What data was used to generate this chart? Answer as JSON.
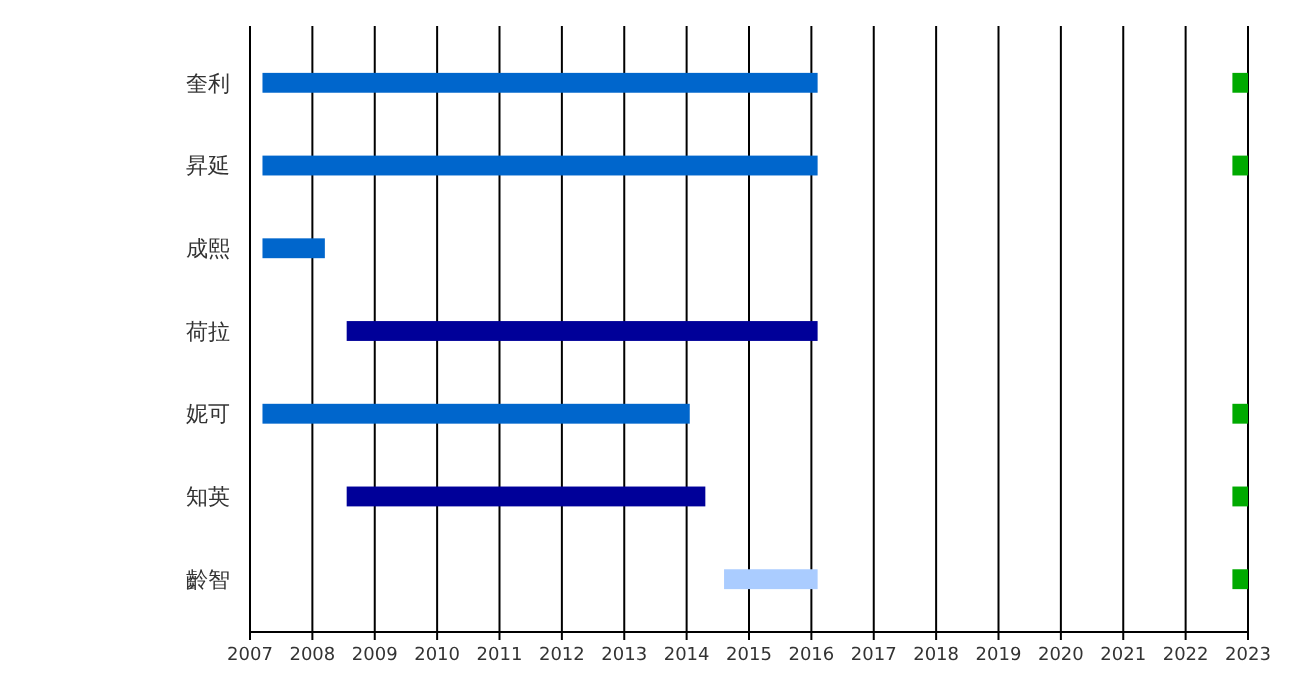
{
  "chart_data": {
    "type": "bar",
    "orientation": "horizontal",
    "categories": [
      "奎利",
      "昇延",
      "成熙",
      "荷拉",
      "妮可",
      "知英",
      "齡智"
    ],
    "series": [
      {
        "color": "#0066cc",
        "base": [
          2007.2,
          2007.2,
          2007.2,
          null,
          2007.2,
          null,
          null
        ],
        "values": [
          8.9,
          8.9,
          1.0,
          null,
          6.85,
          null,
          null
        ]
      },
      {
        "color": "#000099",
        "base": [
          null,
          null,
          null,
          2008.55,
          null,
          2008.55,
          null
        ],
        "values": [
          null,
          null,
          null,
          7.55,
          null,
          5.75,
          null
        ]
      },
      {
        "color": "#aaccff",
        "base": [
          null,
          null,
          null,
          null,
          null,
          null,
          2014.6
        ],
        "values": [
          null,
          null,
          null,
          null,
          null,
          null,
          1.5
        ]
      },
      {
        "color": "#00aa00",
        "base": [
          2022.75,
          2022.75,
          null,
          null,
          2022.75,
          2022.75,
          2022.75
        ],
        "values": [
          0.25,
          0.25,
          null,
          null,
          0.25,
          0.25,
          0.25
        ]
      }
    ],
    "xlim": [
      2007,
      2023
    ],
    "xticks": [
      2007,
      2008,
      2009,
      2010,
      2011,
      2012,
      2013,
      2014,
      2015,
      2016,
      2017,
      2018,
      2019,
      2020,
      2021,
      2022,
      2023
    ],
    "grid": "x"
  }
}
